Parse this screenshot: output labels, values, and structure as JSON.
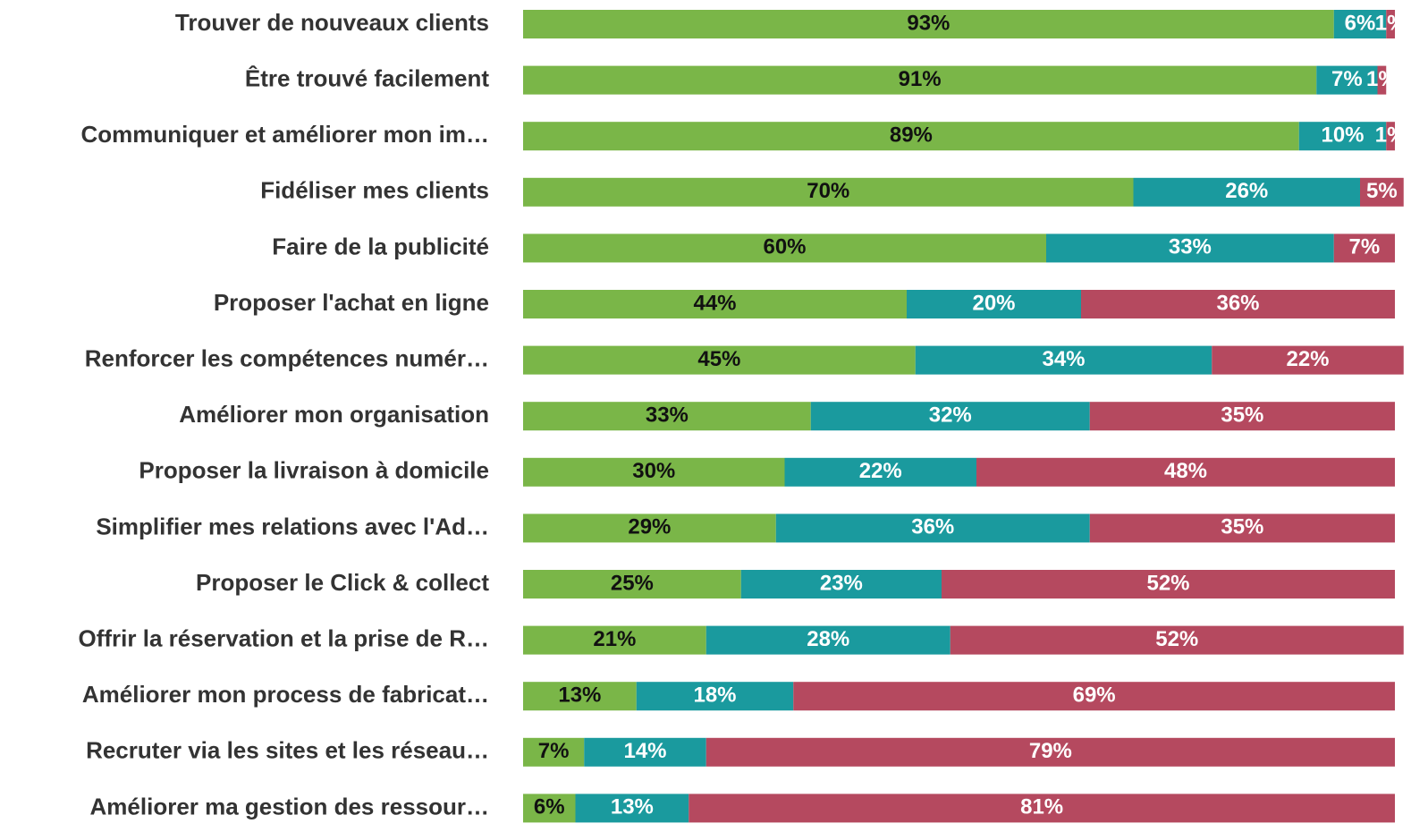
{
  "chart_data": {
    "type": "stacked-bar-horizontal",
    "categories": [
      "Trouver de nouveaux clients",
      "Être trouvé facilement",
      "Communiquer et améliorer mon im…",
      "Fidéliser mes clients",
      "Faire de la publicité",
      "Proposer l'achat en ligne",
      "Renforcer les compétences numér…",
      "Améliorer mon organisation",
      "Proposer la livraison à domicile",
      "Simplifier mes relations avec l'Ad…",
      "Proposer le Click & collect",
      "Offrir la réservation et la prise de R…",
      "Améliorer mon process de fabricat…",
      "Recruter via les sites et les réseau…",
      "Améliorer ma gestion des ressour…"
    ],
    "xlim": [
      0,
      100
    ],
    "series": [
      {
        "color": "#7ab648",
        "label_color": "#111111",
        "values": [
          93,
          91,
          89,
          70,
          60,
          44,
          45,
          33,
          30,
          29,
          25,
          21,
          13,
          7,
          6
        ],
        "value_labels": [
          "93%",
          "91%",
          "89%",
          "70%",
          "60%",
          "44%",
          "45%",
          "33%",
          "30%",
          "29%",
          "25%",
          "21%",
          "13%",
          "7%",
          "6%"
        ]
      },
      {
        "color": "#1a9a9e",
        "label_color": "#ffffff",
        "values": [
          6,
          7,
          10,
          26,
          33,
          20,
          34,
          32,
          22,
          36,
          23,
          28,
          18,
          14,
          13
        ],
        "value_labels": [
          "6%",
          "7%",
          "10%",
          "26%",
          "33%",
          "20%",
          "34%",
          "32%",
          "22%",
          "36%",
          "23%",
          "28%",
          "18%",
          "14%",
          "13%"
        ]
      },
      {
        "color": "#b5495f",
        "label_color": "#ffffff",
        "values": [
          1,
          1,
          1,
          5,
          7,
          36,
          22,
          35,
          48,
          35,
          52,
          52,
          69,
          79,
          81
        ],
        "value_labels": [
          "1%",
          "1%",
          "1%",
          "5%",
          "7%",
          "36%",
          "22%",
          "35%",
          "48%",
          "35%",
          "52%",
          "52%",
          "69%",
          "79%",
          "81%"
        ]
      }
    ]
  }
}
